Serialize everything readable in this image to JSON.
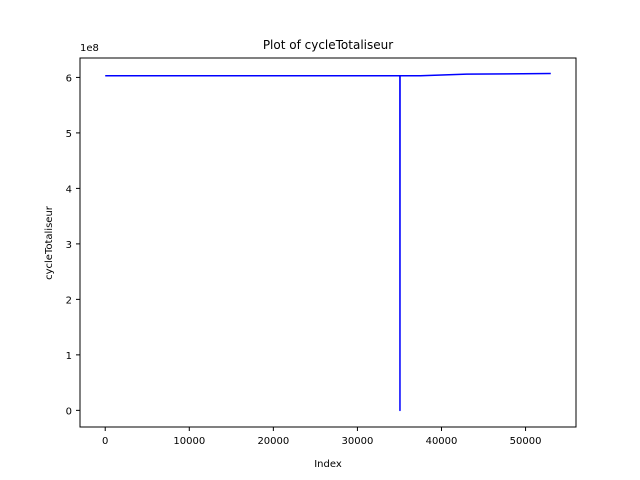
{
  "chart_data": {
    "type": "line",
    "title": "Plot of cycleTotaliseur",
    "xlabel": "Index",
    "ylabel": "cycleTotaliseur",
    "y_offset_label": "1e8",
    "xlim": [
      -3000,
      56000
    ],
    "ylim": [
      -0.3,
      6.35
    ],
    "x_ticks": [
      0,
      10000,
      20000,
      30000,
      40000,
      50000
    ],
    "x_tick_labels": [
      "0",
      "10000",
      "20000",
      "30000",
      "40000",
      "50000"
    ],
    "y_ticks": [
      0,
      1,
      2,
      3,
      4,
      5,
      6
    ],
    "y_tick_labels": [
      "0",
      "1",
      "2",
      "3",
      "4",
      "5",
      "6"
    ],
    "grid": false,
    "series": [
      {
        "color": "#0000ff",
        "x": [
          0,
          35000,
          35050,
          35060,
          35070,
          37500,
          43000,
          53000
        ],
        "y": [
          6.03,
          6.03,
          6.03,
          0.0,
          6.03,
          6.03,
          6.06,
          6.07
        ]
      }
    ]
  }
}
